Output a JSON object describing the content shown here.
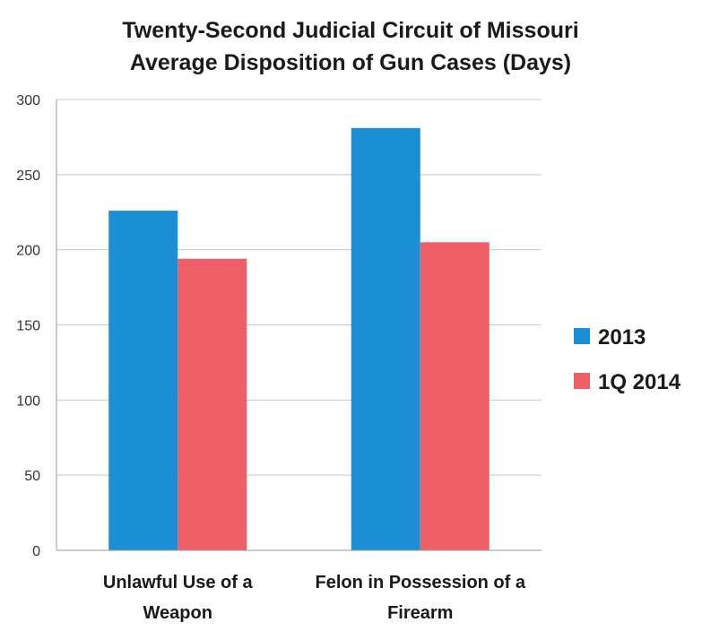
{
  "chart_data": {
    "type": "bar",
    "title_lines": [
      "Twenty-Second Judicial Circuit of Missouri",
      "Average Disposition of Gun Cases (Days)"
    ],
    "categories": [
      [
        "Unlawful Use of a",
        "Weapon"
      ],
      [
        "Felon in Possession of a",
        "Firearm"
      ]
    ],
    "series": [
      {
        "name": "2013",
        "color": "#1b8ed6",
        "values": [
          226,
          281
        ]
      },
      {
        "name": "1Q 2014",
        "color": "#ef5f67",
        "values": [
          194,
          205
        ]
      }
    ],
    "ylim": [
      0,
      300
    ],
    "yticks": [
      0,
      50,
      100,
      150,
      200,
      250,
      300
    ],
    "grid": true,
    "legend_position": "right"
  }
}
